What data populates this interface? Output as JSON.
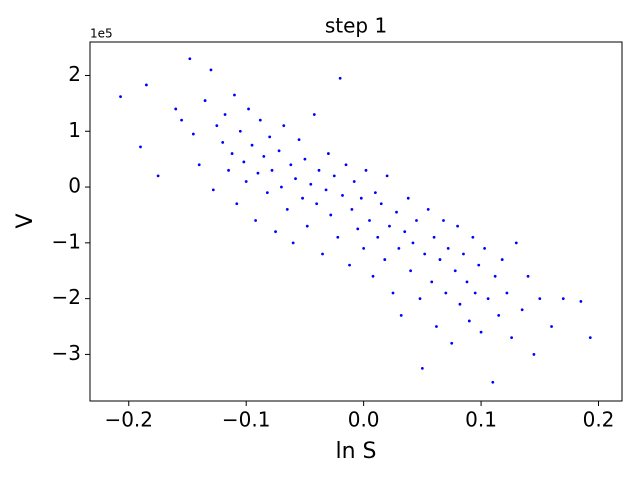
{
  "chart_data": {
    "type": "scatter",
    "title": "step 1",
    "x_label": "ln S",
    "y_label": "V",
    "y_offset_label": "1e5",
    "color": "#0000ff",
    "xlim": [
      -0.233,
      0.22
    ],
    "ylim": [
      -383500,
      260000
    ],
    "xticks": [
      {
        "value": -0.2,
        "label": "−0.2"
      },
      {
        "value": -0.1,
        "label": "−0.1"
      },
      {
        "value": 0,
        "label": "0.0"
      },
      0.1,
      0.2
    ],
    "yticks": [
      {
        "value": -300000,
        "label": "−3"
      },
      {
        "value": -200000,
        "label": "−2"
      },
      {
        "value": -100000,
        "label": "−1"
      },
      {
        "value": 0,
        "label": "0"
      },
      {
        "value": 100000,
        "label": "1"
      },
      {
        "value": 200000,
        "label": "2"
      }
    ],
    "x": [
      -0.207,
      -0.19,
      -0.185,
      -0.175,
      -0.16,
      -0.155,
      -0.148,
      -0.145,
      -0.14,
      -0.135,
      -0.13,
      -0.128,
      -0.125,
      -0.12,
      -0.118,
      -0.115,
      -0.112,
      -0.11,
      -0.108,
      -0.105,
      -0.102,
      -0.1,
      -0.098,
      -0.095,
      -0.092,
      -0.09,
      -0.088,
      -0.085,
      -0.082,
      -0.08,
      -0.078,
      -0.075,
      -0.072,
      -0.07,
      -0.068,
      -0.065,
      -0.062,
      -0.06,
      -0.058,
      -0.055,
      -0.052,
      -0.05,
      -0.048,
      -0.045,
      -0.042,
      -0.04,
      -0.038,
      -0.035,
      -0.032,
      -0.03,
      -0.028,
      -0.025,
      -0.022,
      -0.02,
      -0.018,
      -0.015,
      -0.012,
      -0.01,
      -0.008,
      -0.005,
      -0.002,
      0.0,
      0.002,
      0.005,
      0.008,
      0.01,
      0.012,
      0.015,
      0.018,
      0.02,
      0.022,
      0.025,
      0.028,
      0.03,
      0.032,
      0.035,
      0.038,
      0.04,
      0.042,
      0.045,
      0.048,
      0.05,
      0.052,
      0.055,
      0.058,
      0.06,
      0.062,
      0.065,
      0.068,
      0.07,
      0.072,
      0.075,
      0.078,
      0.08,
      0.082,
      0.085,
      0.088,
      0.09,
      0.093,
      0.095,
      0.098,
      0.1,
      0.103,
      0.106,
      0.11,
      0.112,
      0.115,
      0.118,
      0.122,
      0.126,
      0.13,
      0.135,
      0.14,
      0.145,
      0.15,
      0.16,
      0.17,
      0.185,
      0.193
    ],
    "values": [
      162000,
      72000,
      183000,
      20000,
      140000,
      120000,
      230000,
      95000,
      40000,
      155000,
      210000,
      -5000,
      110000,
      80000,
      130000,
      30000,
      60000,
      165000,
      -30000,
      100000,
      45000,
      10000,
      140000,
      75000,
      -60000,
      25000,
      120000,
      55000,
      -10000,
      90000,
      30000,
      -80000,
      65000,
      0,
      110000,
      -40000,
      40000,
      -100000,
      15000,
      85000,
      -20000,
      50000,
      -70000,
      5000,
      130000,
      -30000,
      30000,
      -120000,
      -5000,
      60000,
      -50000,
      20000,
      -90000,
      195000,
      -15000,
      40000,
      -140000,
      -40000,
      10000,
      -75000,
      -20000,
      -110000,
      30000,
      -60000,
      -160000,
      -10000,
      -90000,
      -30000,
      -130000,
      20000,
      -70000,
      -190000,
      -45000,
      -110000,
      -230000,
      -80000,
      -20000,
      -150000,
      -100000,
      -60000,
      -200000,
      -325000,
      -120000,
      -40000,
      -170000,
      -90000,
      -250000,
      -130000,
      -60000,
      -190000,
      -110000,
      -280000,
      -150000,
      -70000,
      -210000,
      -120000,
      -170000,
      -240000,
      -90000,
      -190000,
      -140000,
      -260000,
      -110000,
      -200000,
      -350000,
      -160000,
      -230000,
      -130000,
      -190000,
      -270000,
      -100000,
      -220000,
      -160000,
      -300000,
      -200000,
      -250000,
      -200000,
      -205000,
      -270000
    ]
  }
}
